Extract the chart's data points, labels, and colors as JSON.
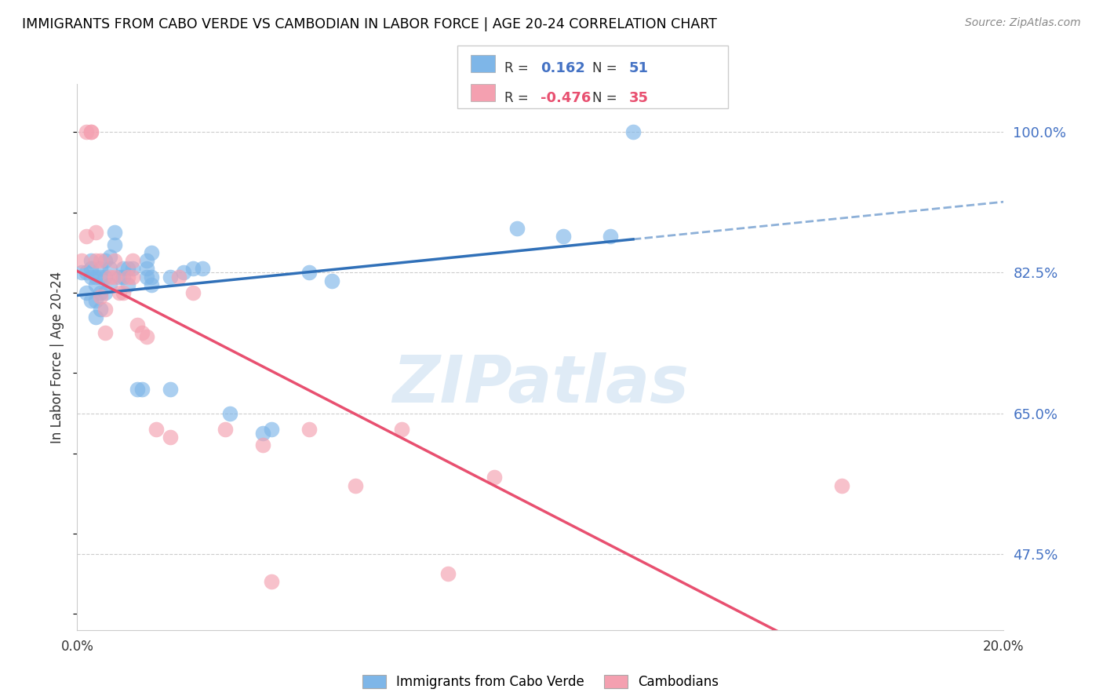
{
  "title": "IMMIGRANTS FROM CABO VERDE VS CAMBODIAN IN LABOR FORCE | AGE 20-24 CORRELATION CHART",
  "source": "Source: ZipAtlas.com",
  "ylabel": "In Labor Force | Age 20-24",
  "yticks": [
    "100.0%",
    "82.5%",
    "65.0%",
    "47.5%"
  ],
  "ytick_vals": [
    1.0,
    0.825,
    0.65,
    0.475
  ],
  "xlim": [
    0.0,
    0.2
  ],
  "ylim": [
    0.38,
    1.06
  ],
  "cabo_verde_R": 0.162,
  "cabo_verde_N": 51,
  "cambodian_R": -0.476,
  "cambodian_N": 35,
  "cabo_verde_color": "#7EB6E8",
  "cambodian_color": "#F4A0B0",
  "regression_blue": "#3070B8",
  "regression_pink": "#E85070",
  "cabo_verde_x": [
    0.001,
    0.002,
    0.002,
    0.003,
    0.003,
    0.003,
    0.003,
    0.004,
    0.004,
    0.004,
    0.004,
    0.005,
    0.005,
    0.005,
    0.005,
    0.006,
    0.006,
    0.006,
    0.007,
    0.007,
    0.007,
    0.008,
    0.008,
    0.009,
    0.01,
    0.01,
    0.011,
    0.011,
    0.012,
    0.013,
    0.014,
    0.015,
    0.015,
    0.015,
    0.016,
    0.016,
    0.016,
    0.02,
    0.02,
    0.023,
    0.025,
    0.027,
    0.033,
    0.04,
    0.042,
    0.05,
    0.055,
    0.095,
    0.105,
    0.115,
    0.12
  ],
  "cabo_verde_y": [
    0.825,
    0.825,
    0.8,
    0.82,
    0.83,
    0.84,
    0.79,
    0.81,
    0.82,
    0.79,
    0.77,
    0.83,
    0.82,
    0.8,
    0.78,
    0.84,
    0.82,
    0.8,
    0.845,
    0.83,
    0.81,
    0.875,
    0.86,
    0.82,
    0.83,
    0.82,
    0.83,
    0.81,
    0.83,
    0.68,
    0.68,
    0.84,
    0.83,
    0.82,
    0.85,
    0.82,
    0.81,
    0.82,
    0.68,
    0.825,
    0.83,
    0.83,
    0.65,
    0.625,
    0.63,
    0.825,
    0.815,
    0.88,
    0.87,
    0.87,
    1.0
  ],
  "cambodian_x": [
    0.001,
    0.002,
    0.002,
    0.003,
    0.003,
    0.004,
    0.004,
    0.005,
    0.005,
    0.006,
    0.006,
    0.007,
    0.008,
    0.008,
    0.009,
    0.01,
    0.011,
    0.012,
    0.012,
    0.013,
    0.014,
    0.015,
    0.017,
    0.02,
    0.022,
    0.025,
    0.032,
    0.04,
    0.042,
    0.05,
    0.06,
    0.07,
    0.08,
    0.09,
    0.165
  ],
  "cambodian_y": [
    0.84,
    0.87,
    1.0,
    1.0,
    1.0,
    0.875,
    0.84,
    0.84,
    0.795,
    0.78,
    0.75,
    0.82,
    0.84,
    0.82,
    0.8,
    0.8,
    0.82,
    0.84,
    0.82,
    0.76,
    0.75,
    0.745,
    0.63,
    0.62,
    0.82,
    0.8,
    0.63,
    0.61,
    0.44,
    0.63,
    0.56,
    0.63,
    0.45,
    0.57,
    0.56
  ],
  "watermark": "ZIPatlas",
  "blue_label": "Immigrants from Cabo Verde",
  "pink_label": "Cambodians"
}
